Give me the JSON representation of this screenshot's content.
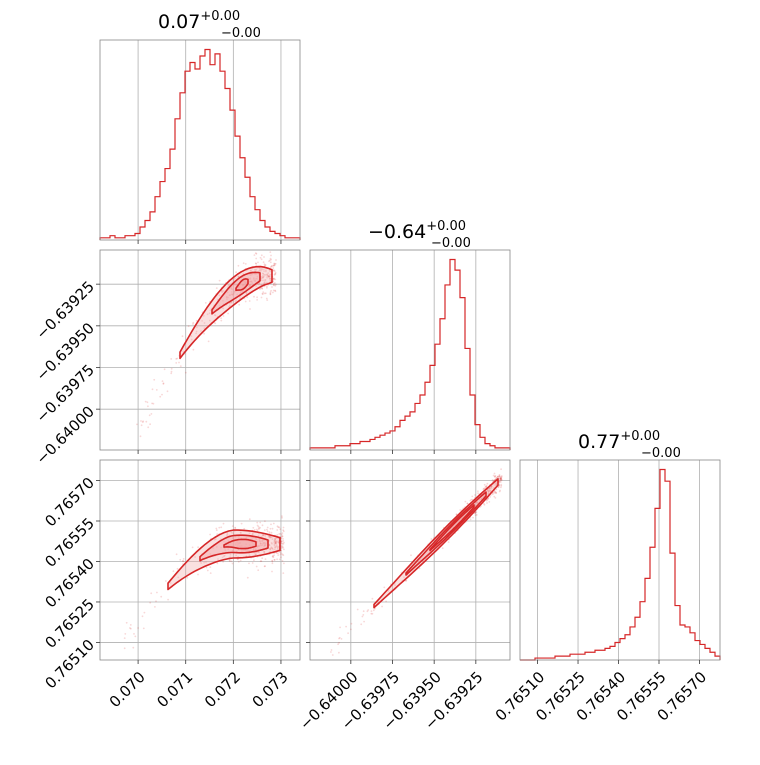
{
  "chart_data": {
    "type": "corner",
    "accent_color": "#d62728",
    "fill_color": "#f2a5a6",
    "grid": true,
    "titles": [
      {
        "value": "0.07",
        "plus": "+0.00",
        "minus": "−0.00"
      },
      {
        "value": "−0.64",
        "plus": "+0.00",
        "minus": "−0.00"
      },
      {
        "value": "0.77",
        "plus": "+0.00",
        "minus": "−0.00"
      }
    ],
    "params": [
      {
        "xlim": [
          0.0692,
          0.0734
        ],
        "ticks": [
          0.07,
          0.071,
          0.072,
          0.073
        ],
        "tick_labels": [
          "0.070",
          "0.071",
          "0.072",
          "0.073"
        ]
      },
      {
        "xlim": [
          -0.640245,
          -0.639045
        ],
        "ticks": [
          -0.64,
          -0.63975,
          -0.6395,
          -0.63925
        ],
        "tick_labels": [
          "−0.64000",
          "−0.63975",
          "−0.63950",
          "−0.63925"
        ]
      },
      {
        "xlim": [
          0.765035,
          0.765776
        ],
        "ticks": [
          0.7651,
          0.76525,
          0.7654,
          0.76555,
          0.7657
        ],
        "tick_labels": [
          "0.76510",
          "0.76525",
          "0.76540",
          "0.76555",
          "0.76570"
        ]
      }
    ],
    "hist1d": [
      {
        "bins": 40,
        "counts": [
          1,
          1,
          2,
          1,
          1,
          2,
          2,
          3,
          6,
          9,
          13,
          20,
          27,
          33,
          42,
          56,
          68,
          78,
          82,
          79,
          85,
          88,
          81,
          86,
          78,
          70,
          60,
          48,
          38,
          29,
          20,
          14,
          9,
          6,
          4,
          3,
          2,
          1,
          1,
          1
        ]
      },
      {
        "bins": 40,
        "counts": [
          1,
          1,
          1,
          1,
          1,
          2,
          2,
          2,
          3,
          3,
          4,
          4,
          5,
          6,
          7,
          8,
          9,
          11,
          14,
          16,
          18,
          22,
          26,
          32,
          40,
          50,
          62,
          78,
          90,
          85,
          72,
          48,
          26,
          12,
          6,
          3,
          2,
          1,
          1,
          1
        ]
      },
      {
        "bins": 40,
        "counts": [
          0,
          0,
          0,
          1,
          1,
          1,
          1,
          2,
          2,
          2,
          3,
          3,
          3,
          4,
          4,
          5,
          5,
          6,
          7,
          9,
          11,
          13,
          17,
          22,
          30,
          42,
          58,
          78,
          98,
          92,
          55,
          28,
          18,
          17,
          14,
          10,
          8,
          6,
          4,
          2
        ]
      }
    ]
  }
}
